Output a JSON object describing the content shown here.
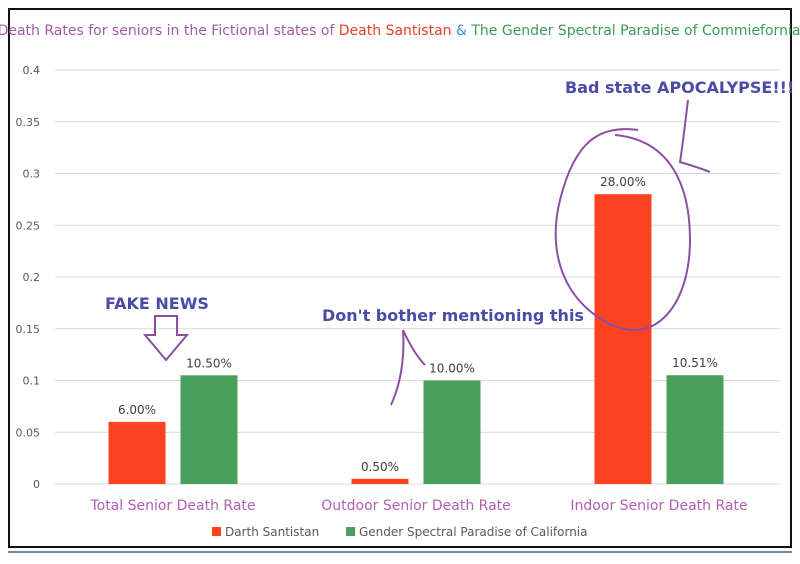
{
  "chart_data": {
    "type": "bar",
    "title_parts": [
      {
        "text": "Death Rates for seniors in the Fictional states of ",
        "color": "#a45aa8"
      },
      {
        "text": "Death Santistan",
        "color": "#e8412b"
      },
      {
        "text": " & ",
        "color": "#3d8fd6"
      },
      {
        "text": "The Gender Spectral Paradise of Commiefornia",
        "color": "#3c9a5a"
      }
    ],
    "categories": [
      "Total Senior Death Rate",
      "Outdoor Senior Death Rate",
      "Indoor Senior Death Rate"
    ],
    "series": [
      {
        "name": "Darth Santistan",
        "color": "#fc4220",
        "values": [
          0.06,
          0.005,
          0.28
        ],
        "labels": [
          "6.00%",
          "0.50%",
          "28.00%"
        ]
      },
      {
        "name": "Gender Spectral Paradise of California",
        "color": "#48a05c",
        "values": [
          0.105,
          0.1,
          0.1051
        ],
        "labels": [
          "10.50%",
          "10.00%",
          "10.51%"
        ]
      }
    ],
    "ylim": [
      0,
      0.4
    ],
    "yticks": [
      "0",
      "0.05",
      "0.1",
      "0.15",
      "0.2",
      "0.25",
      "0.3",
      "0.35",
      "0.4"
    ],
    "grid": true,
    "legend": "bottom",
    "annotations": {
      "fake_news": "FAKE NEWS",
      "dont_bother": "Don't bother mentioning this",
      "apocalypse": "Bad state APOCALYPSE!!!"
    },
    "annotation_color": "#4a4ba6",
    "scribble_color": "#8a4fa0"
  }
}
